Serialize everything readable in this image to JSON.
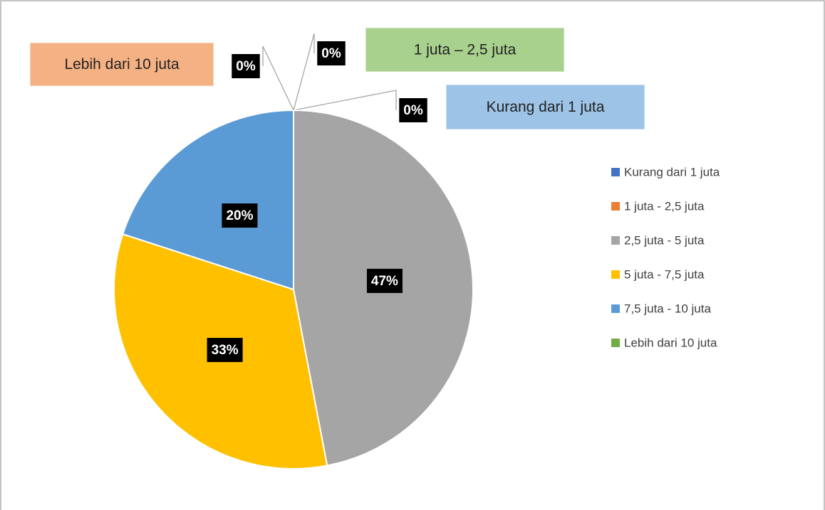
{
  "chart_data": {
    "type": "pie",
    "categories": [
      "Kurang dari 1 juta",
      "1 juta - 2,5 juta",
      "2,5 juta - 5 juta",
      "5 juta - 7,5 juta",
      "7,5 juta - 10 juta",
      "Lebih dari 10 juta"
    ],
    "values": [
      0,
      0,
      47,
      33,
      20,
      0
    ],
    "value_labels": [
      "0%",
      "0%",
      "47%",
      "33%",
      "20%",
      "0%"
    ],
    "colors": [
      "#4472c4",
      "#ed7d31",
      "#a5a5a5",
      "#ffc000",
      "#5b9bd5",
      "#70ad47"
    ],
    "legend": "right",
    "annotations": [
      {
        "text": "Lebih dari 10 juta",
        "color": "#f4b183"
      },
      {
        "text": "1 juta – 2,5 juta",
        "color": "#a9d18e"
      },
      {
        "text": "Kurang dari 1 juta",
        "color": "#9dc3e6"
      }
    ]
  }
}
